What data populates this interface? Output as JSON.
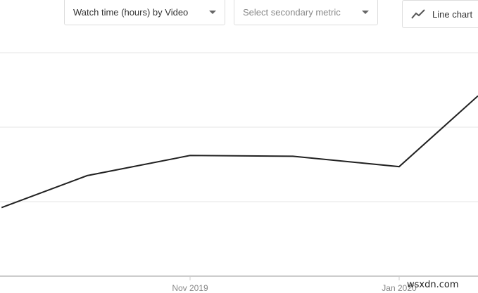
{
  "toolbar": {
    "primary_metric": "Watch time (hours) by Video",
    "secondary_metric_placeholder": "Select secondary metric",
    "chart_type": "Line chart",
    "chart_type_icon": "line-chart-icon"
  },
  "watermark": "wsxdn.com",
  "chart_data": {
    "type": "line",
    "title": "",
    "xlabel": "",
    "ylabel": "",
    "x_tick_labels": [
      "Nov 2019",
      "Jan 2020"
    ],
    "x_ticks": [
      "2019-11-01",
      "2020-01-01"
    ],
    "grid": true,
    "series": [
      {
        "color": "#212121",
        "points": [
          {
            "x": "2019-09-07",
            "y": 0.92
          },
          {
            "x": "2019-10-02",
            "y": 1.35
          },
          {
            "x": "2019-11-01",
            "y": 1.62
          },
          {
            "x": "2019-12-01",
            "y": 1.61
          },
          {
            "x": "2020-01-01",
            "y": 1.47
          },
          {
            "x": "2020-01-24",
            "y": 2.42
          }
        ]
      }
    ],
    "ylim": [
      0,
      3
    ]
  }
}
